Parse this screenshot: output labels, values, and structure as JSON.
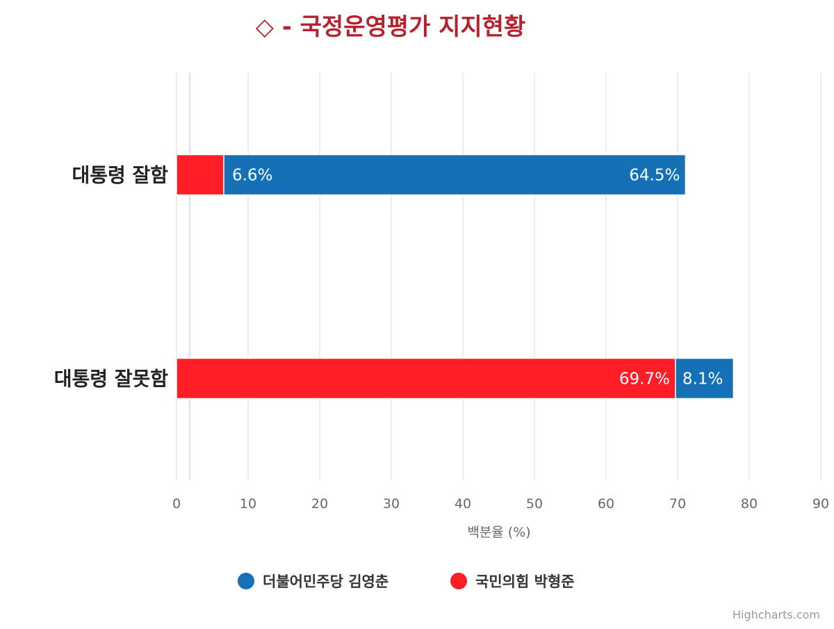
{
  "chart_data": {
    "type": "bar",
    "orientation": "horizontal",
    "stacked": true,
    "title": "◇ - 국정운영평가 지지현황",
    "categories": [
      "대통령 잘함",
      "대통령 잘못함"
    ],
    "series": [
      {
        "name": "더불어민주당 김영춘",
        "color": "#1570b5",
        "values": [
          64.5,
          8.1
        ],
        "labels": [
          "64.5%",
          "8.1%"
        ]
      },
      {
        "name": "국민의힘 박형준",
        "color": "#ff1e27",
        "values": [
          6.6,
          69.7
        ],
        "labels": [
          "6.6%",
          "69.7%"
        ]
      }
    ],
    "xlabel": "백분율 (%)",
    "xlim": [
      0,
      90
    ],
    "xticks": [
      "0",
      "10",
      "20",
      "30",
      "40",
      "50",
      "60",
      "70",
      "80",
      "90"
    ],
    "grid": true,
    "legend_position": "bottom"
  },
  "credits": "Highcharts.com"
}
